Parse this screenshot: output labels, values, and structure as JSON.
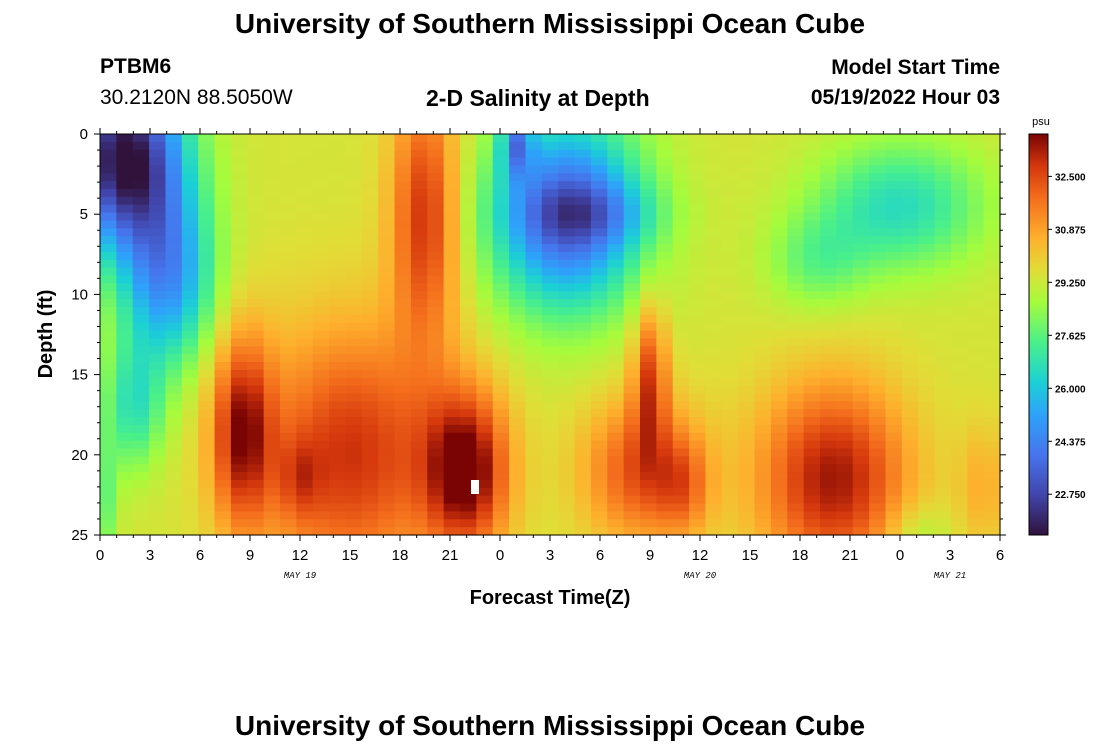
{
  "header": {
    "title": "University of Southern Mississippi Ocean Cube",
    "station_id": "PTBM6",
    "station_coords": "30.2120N  88.5050W",
    "subtitle": "2-D Salinity at Depth",
    "model_start_label": "Model Start Time",
    "model_start_value": "05/19/2022 Hour 03"
  },
  "footer": {
    "title": "University of Southern Mississippi Ocean Cube"
  },
  "chart_data": {
    "type": "heatmap",
    "title": "2-D Salinity at Depth",
    "xlabel": "Forecast Time(Z)",
    "ylabel": "Depth (ft)",
    "x_range_hours": [
      0,
      54
    ],
    "y_range": [
      0,
      25
    ],
    "x_ticks": [
      "0",
      "3",
      "6",
      "9",
      "12",
      "15",
      "18",
      "21",
      "0",
      "3",
      "6",
      "9",
      "12",
      "15",
      "18",
      "21",
      "0",
      "3",
      "6"
    ],
    "y_ticks": [
      "0",
      "5",
      "10",
      "15",
      "20",
      "25"
    ],
    "date_labels": [
      {
        "text": "MAY 19",
        "hour": 12
      },
      {
        "text": "MAY 20",
        "hour": 36
      },
      {
        "text": "MAY 21",
        "hour": 51
      }
    ],
    "colorbar": {
      "unit": "psu",
      "min": 21.5,
      "max": 33.8,
      "ticks": [
        "32.500",
        "30.875",
        "29.250",
        "27.625",
        "26.000",
        "24.375",
        "22.750"
      ],
      "tick_values": [
        32.5,
        30.875,
        29.25,
        27.625,
        26.0,
        24.375,
        22.75
      ]
    },
    "grid_cols": 55,
    "grid_rows": 51
  }
}
